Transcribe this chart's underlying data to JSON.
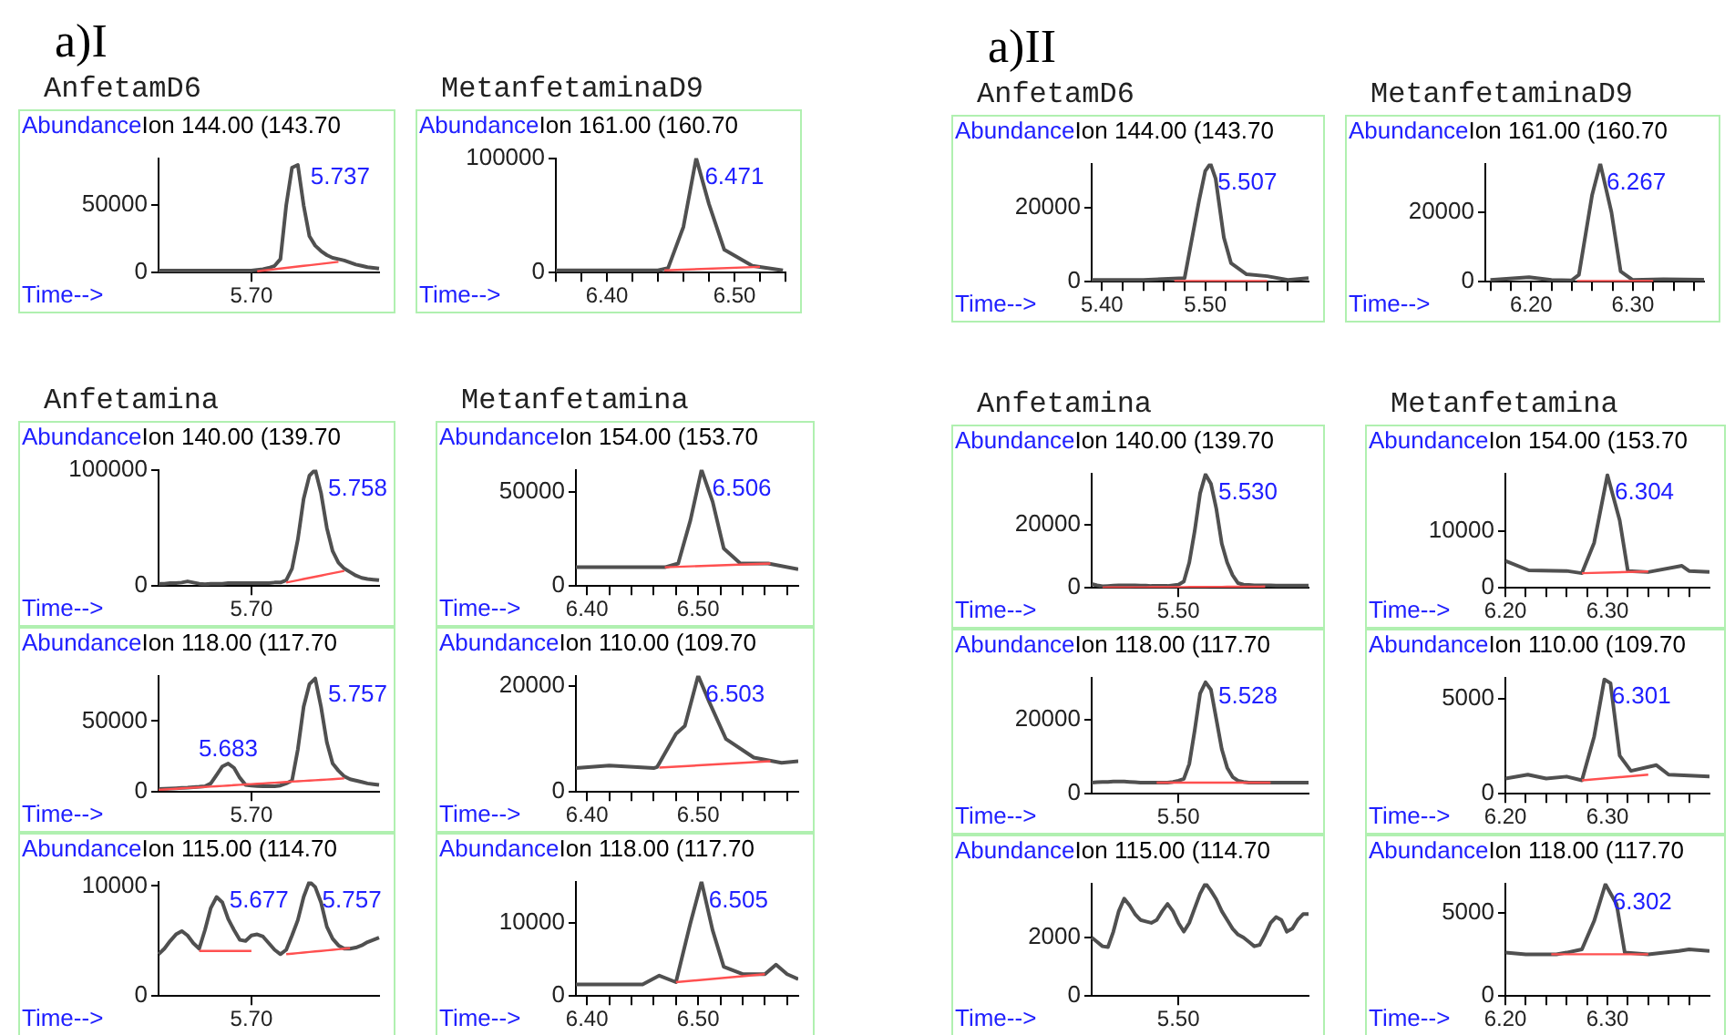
{
  "chart_data": [
    {
      "type": "line",
      "annotations": [
        "a)I",
        "5.737"
      ],
      "title": "AnfetamD6",
      "ylabel": "Abundance",
      "subtitle": "Ion 144.00 (143.70",
      "xlabel": "Time-->",
      "categories": [
        null,
        null,
        null,
        null,
        null,
        null,
        null,
        null,
        null,
        null,
        null,
        null,
        null,
        null,
        null,
        null,
        "5.70",
        null,
        null,
        null,
        null,
        null,
        null,
        null,
        null,
        null,
        null,
        null,
        null,
        null,
        null,
        null,
        null,
        null,
        null,
        null,
        null,
        null,
        null
      ],
      "ylim": [
        0,
        85000
      ],
      "yticks": [
        0,
        50000
      ],
      "legend": false,
      "series": [
        {
          "color": "#505050",
          "values": [
            1500,
            1500,
            1500,
            1500,
            1500,
            1500,
            1500,
            1500,
            1500,
            1500,
            1500,
            1500,
            1500,
            1500,
            1500,
            1500,
            1500,
            2000,
            2500,
            3500,
            5000,
            10000,
            50000,
            78000,
            80000,
            50000,
            27000,
            20000,
            16000,
            13000,
            11000,
            10000,
            9000,
            7500,
            6000,
            5000,
            4000,
            3500,
            3000
          ]
        },
        {
          "color": "#ff5050",
          "values": [
            null,
            null,
            null,
            null,
            null,
            null,
            null,
            null,
            null,
            null,
            null,
            null,
            null,
            null,
            null,
            null,
            null,
            1000,
            1500,
            2000,
            2500,
            3000,
            3500,
            4000,
            4500,
            5000,
            5500,
            6000,
            6500,
            7000,
            7500,
            8000,
            null,
            null,
            null,
            null,
            null,
            null,
            null
          ]
        }
      ]
    },
    {
      "type": "line",
      "annotations": [
        {
          "text": "6.471",
          "x": 6.471,
          "y": 100000
        }
      ],
      "title": "MetanfetaminaD9",
      "ylabel": "Abundance",
      "subtitle": "Ion 161.00 (160.70",
      "xlabel": "Time-->",
      "xlim": [
        6.36,
        6.54
      ],
      "ylim": [
        0,
        100000
      ],
      "yticks": [
        0,
        100000
      ],
      "xticks": [
        {
          "value": 6.36,
          "label": null
        },
        {
          "value": 6.38,
          "label": null
        },
        {
          "value": 6.4,
          "label": "6.40"
        },
        {
          "value": 6.42,
          "label": null
        },
        {
          "value": 6.44,
          "label": null
        },
        {
          "value": 6.46,
          "label": null
        },
        {
          "value": 6.48,
          "label": null
        },
        {
          "value": 6.5,
          "label": "6.50"
        },
        {
          "value": 6.52,
          "label": null
        },
        {
          "value": 6.54,
          "label": null
        }
      ],
      "legend": false,
      "series": [
        {
          "color": "#505050",
          "x": [
            6.36,
            6.4,
            6.44,
            6.448,
            6.46,
            6.47,
            6.48,
            6.492,
            6.514,
            6.538
          ],
          "values": [
            2000,
            2000,
            2000,
            4000,
            40000,
            100000,
            60000,
            20000,
            6000,
            2000
          ]
        },
        {
          "color": "#ff5050",
          "x": [
            6.445,
            6.52
          ],
          "values": [
            2000,
            5000
          ]
        }
      ]
    },
    {
      "type": "line",
      "annotations": [
        "5.758"
      ],
      "title": "Anfetamina",
      "ylabel": "Abundance",
      "subtitle": "Ion 140.00 (139.70",
      "xlabel": "Time-->",
      "categories": [
        null,
        null,
        null,
        null,
        null,
        null,
        null,
        null,
        null,
        null,
        null,
        null,
        null,
        null,
        null,
        null,
        "5.70",
        null,
        null,
        null,
        null,
        null,
        null,
        null,
        null,
        null,
        null,
        null,
        null,
        null,
        null,
        null,
        null,
        null,
        null,
        null,
        null,
        null,
        null
      ],
      "ylim": [
        0,
        100000
      ],
      "yticks": [
        0,
        100000
      ],
      "legend": false,
      "series": [
        {
          "color": "#505050",
          "values": [
            2000,
            2000,
            2500,
            2500,
            3000,
            4000,
            3000,
            2000,
            1500,
            2000,
            2000,
            2000,
            2500,
            2500,
            2500,
            2500,
            2500,
            2500,
            2500,
            2500,
            3000,
            3000,
            5000,
            15000,
            40000,
            75000,
            95000,
            100000,
            80000,
            50000,
            30000,
            20000,
            15000,
            12000,
            9000,
            7000,
            6000,
            5500,
            5000
          ]
        },
        {
          "color": "#ff5050",
          "values": [
            null,
            null,
            null,
            null,
            null,
            null,
            null,
            null,
            null,
            null,
            null,
            null,
            null,
            null,
            null,
            null,
            null,
            null,
            null,
            null,
            null,
            null,
            3000,
            4000,
            5000,
            6000,
            7000,
            8000,
            9000,
            10000,
            11000,
            12000,
            13000,
            null,
            null,
            null,
            null,
            null,
            null
          ]
        }
      ]
    },
    {
      "type": "line",
      "annotations": [
        {
          "text": "6.506",
          "x": 6.506,
          "y": 62000
        }
      ],
      "title": "Metanfetamina",
      "ylabel": "Abundance",
      "subtitle": "Ion 154.00 (153.70",
      "xlabel": "Time-->",
      "xlim": [
        6.39,
        6.59
      ],
      "ylim": [
        0,
        62000
      ],
      "yticks": [
        0,
        50000
      ],
      "xticks": [
        {
          "value": 6.4,
          "label": "6.40"
        },
        {
          "value": 6.42,
          "label": null
        },
        {
          "value": 6.44,
          "label": null
        },
        {
          "value": 6.46,
          "label": null
        },
        {
          "value": 6.48,
          "label": null
        },
        {
          "value": 6.5,
          "label": "6.50"
        },
        {
          "value": 6.52,
          "label": null
        },
        {
          "value": 6.54,
          "label": null
        },
        {
          "value": 6.56,
          "label": null
        },
        {
          "value": 6.58,
          "label": null
        }
      ],
      "legend": false,
      "series": [
        {
          "color": "#505050",
          "x": [
            6.39,
            6.43,
            6.47,
            6.482,
            6.493,
            6.503,
            6.513,
            6.523,
            6.538,
            6.563,
            6.59
          ],
          "values": [
            10000,
            10000,
            10000,
            12000,
            35000,
            62000,
            45000,
            20000,
            12000,
            12000,
            9000
          ]
        },
        {
          "color": "#ff5050",
          "x": [
            6.47,
            6.565
          ],
          "values": [
            10000,
            12000
          ]
        }
      ]
    },
    {
      "type": "line",
      "annotations": [
        "5.683",
        "5.757"
      ],
      "ylabel": "Abundance",
      "subtitle": "Ion 118.00 (117.70",
      "xlabel": "Time-->",
      "categories": [
        null,
        null,
        null,
        null,
        null,
        null,
        null,
        null,
        null,
        null,
        null,
        null,
        null,
        null,
        null,
        null,
        "5.70",
        null,
        null,
        null,
        null,
        null,
        null,
        null,
        null,
        null,
        null,
        null,
        null,
        null,
        null,
        null,
        null,
        null,
        null,
        null,
        null,
        null,
        null
      ],
      "ylim": [
        0,
        82000
      ],
      "yticks": [
        0,
        50000
      ],
      "legend": false,
      "series": [
        {
          "color": "#505050",
          "values": [
            2000,
            2200,
            2400,
            2600,
            2800,
            3000,
            3300,
            3600,
            4000,
            6000,
            12000,
            18000,
            20000,
            17000,
            10000,
            5000,
            4500,
            4200,
            4000,
            4000,
            4000,
            4500,
            6000,
            8000,
            30000,
            60000,
            76000,
            80000,
            60000,
            35000,
            20000,
            15000,
            11000,
            9000,
            8000,
            7000,
            6000,
            5500,
            5000
          ]
        },
        {
          "color": "#ff5050",
          "values": [
            1500,
            1750,
            2000,
            2250,
            2500,
            2750,
            3000,
            3250,
            3500,
            3750,
            4000,
            4250,
            4500,
            4750,
            5000,
            5250,
            5500,
            5750,
            6000,
            6250,
            6500,
            6750,
            7000,
            7250,
            7500,
            7750,
            8000,
            8250,
            8500,
            8750,
            9000,
            9250,
            9500,
            null,
            null,
            null,
            null,
            null,
            null
          ]
        }
      ]
    },
    {
      "type": "line",
      "annotations": [
        {
          "text": "6.503",
          "x": 6.5,
          "y": 22000
        }
      ],
      "ylabel": "Abundance",
      "subtitle": "Ion 110.00 (109.70",
      "xlabel": "Time-->",
      "xlim": [
        6.39,
        6.59
      ],
      "ylim": [
        0,
        22000
      ],
      "yticks": [
        0,
        20000
      ],
      "xticks": [
        {
          "value": 6.4,
          "label": "6.40"
        },
        {
          "value": 6.42,
          "label": null
        },
        {
          "value": 6.44,
          "label": null
        },
        {
          "value": 6.46,
          "label": null
        },
        {
          "value": 6.48,
          "label": null
        },
        {
          "value": 6.5,
          "label": "6.50"
        },
        {
          "value": 6.52,
          "label": null
        },
        {
          "value": 6.54,
          "label": null
        },
        {
          "value": 6.56,
          "label": null
        },
        {
          "value": 6.58,
          "label": null
        }
      ],
      "legend": false,
      "series": [
        {
          "color": "#505050",
          "x": [
            6.39,
            6.42,
            6.46,
            6.463,
            6.48,
            6.488,
            6.5,
            6.51,
            6.525,
            6.55,
            6.575,
            6.59
          ],
          "values": [
            4500,
            5000,
            4500,
            4700,
            11000,
            12500,
            22000,
            17000,
            10000,
            6500,
            5500,
            5800
          ]
        },
        {
          "color": "#ff5050",
          "x": [
            6.465,
            6.565
          ],
          "values": [
            4600,
            5800
          ]
        }
      ]
    },
    {
      "type": "line",
      "annotations": [
        "5.677",
        "5.757"
      ],
      "ylabel": "Abundance",
      "subtitle": "Ion 115.00 (114.70",
      "xlabel": "Time-->",
      "categories": [
        null,
        null,
        null,
        null,
        null,
        null,
        null,
        null,
        null,
        null,
        null,
        null,
        null,
        null,
        null,
        null,
        "5.70",
        null,
        null,
        null,
        null,
        null,
        null,
        null,
        null,
        null,
        null,
        null,
        null,
        null,
        null,
        null,
        null,
        null,
        null,
        null,
        null,
        null,
        null
      ],
      "ylim": [
        0,
        10400
      ],
      "yticks": [
        0,
        10000
      ],
      "legend": false,
      "series": [
        {
          "color": "#505050",
          "values": [
            3800,
            4300,
            5000,
            5600,
            5900,
            5500,
            4800,
            4300,
            6000,
            8000,
            9000,
            8500,
            7000,
            6000,
            5100,
            5000,
            5500,
            5600,
            5400,
            4800,
            4200,
            3800,
            4200,
            5500,
            6900,
            9000,
            10400,
            9900,
            8500,
            6300,
            5200,
            4600,
            4300,
            4300,
            4400,
            4600,
            4900,
            5100,
            5300
          ]
        },
        {
          "color": "#ff5050",
          "values": [
            null,
            null,
            null,
            null,
            null,
            null,
            null,
            4100,
            4100,
            4100,
            4100,
            4100,
            4100,
            4100,
            4100,
            4100,
            4100,
            null,
            null,
            null,
            null,
            null,
            null,
            null,
            null,
            null,
            null,
            null,
            null,
            null,
            null,
            null,
            null,
            null,
            null,
            null,
            null,
            null,
            null
          ]
        },
        {
          "color": "#ff5050",
          "values": [
            null,
            null,
            null,
            null,
            null,
            null,
            null,
            null,
            null,
            null,
            null,
            null,
            null,
            null,
            null,
            null,
            null,
            null,
            null,
            null,
            null,
            null,
            3800,
            3850,
            3900,
            3950,
            4000,
            4050,
            4100,
            4150,
            4200,
            4250,
            4300,
            4350,
            null,
            null,
            null,
            null,
            null
          ]
        }
      ]
    },
    {
      "type": "line",
      "annotations": [
        {
          "text": "6.505",
          "x": 6.503,
          "y": 15700
        }
      ],
      "ylabel": "Abundance",
      "subtitle": "Ion 118.00 (117.70",
      "xlabel": "Time-->",
      "xlim": [
        6.39,
        6.59
      ],
      "ylim": [
        0,
        15700
      ],
      "yticks": [
        0,
        10000
      ],
      "xticks": [
        {
          "value": 6.4,
          "label": "6.40"
        },
        {
          "value": 6.42,
          "label": null
        },
        {
          "value": 6.44,
          "label": null
        },
        {
          "value": 6.46,
          "label": null
        },
        {
          "value": 6.48,
          "label": null
        },
        {
          "value": 6.5,
          "label": "6.50"
        },
        {
          "value": 6.52,
          "label": null
        },
        {
          "value": 6.54,
          "label": null
        },
        {
          "value": 6.56,
          "label": null
        },
        {
          "value": 6.58,
          "label": null
        }
      ],
      "legend": false,
      "series": [
        {
          "color": "#505050",
          "x": [
            6.39,
            6.45,
            6.465,
            6.48,
            6.493,
            6.503,
            6.513,
            6.523,
            6.54,
            6.56,
            6.57,
            6.58,
            6.59
          ],
          "values": [
            1600,
            1600,
            2800,
            1900,
            10000,
            15700,
            9000,
            4000,
            3000,
            3000,
            4300,
            3000,
            2300
          ]
        },
        {
          "color": "#ff5050",
          "x": [
            6.48,
            6.56
          ],
          "values": [
            1900,
            3000
          ]
        }
      ]
    },
    {
      "type": "line",
      "annotations": [
        "a)II",
        {
          "text": "5.507",
          "x": 5.505,
          "y": 32000
        }
      ],
      "title": "AnfetamD6",
      "ylabel": "Abundance",
      "subtitle": "Ion 144.00 (143.70",
      "xlabel": "Time-->",
      "xlim": [
        5.39,
        5.6
      ],
      "ylim": [
        0,
        32000
      ],
      "yticks": [
        0,
        20000
      ],
      "xticks": [
        {
          "value": 5.4,
          "label": "5.40"
        },
        {
          "value": 5.42,
          "label": null
        },
        {
          "value": 5.44,
          "label": null
        },
        {
          "value": 5.46,
          "label": null
        },
        {
          "value": 5.48,
          "label": null
        },
        {
          "value": 5.5,
          "label": "5.50"
        },
        {
          "value": 5.52,
          "label": null
        },
        {
          "value": 5.54,
          "label": null
        },
        {
          "value": 5.56,
          "label": null
        },
        {
          "value": 5.58,
          "label": null
        }
      ],
      "legend": false,
      "series": [
        {
          "color": "#505050",
          "x": [
            5.39,
            5.44,
            5.48,
            5.494,
            5.5,
            5.505,
            5.51,
            5.518,
            5.525,
            5.54,
            5.56,
            5.58,
            5.6
          ],
          "values": [
            500,
            500,
            1000,
            22000,
            30000,
            32000,
            28000,
            12000,
            5000,
            2000,
            1500,
            500,
            1000
          ]
        },
        {
          "color": "#ff5050",
          "x": [
            5.47,
            5.56
          ],
          "values": [
            200,
            200
          ]
        }
      ]
    },
    {
      "type": "line",
      "annotations": [
        {
          "text": "6.267",
          "x": 6.267,
          "y": 34000
        }
      ],
      "title": "MetanfetaminaD9",
      "ylabel": "Abundance",
      "subtitle": "Ion 161.00 (160.70",
      "xlabel": "Time-->",
      "xlim": [
        6.155,
        6.37
      ],
      "ylim": [
        0,
        34000
      ],
      "yticks": [
        0,
        20000
      ],
      "xticks": [
        {
          "value": 6.16,
          "label": null
        },
        {
          "value": 6.18,
          "label": null
        },
        {
          "value": 6.2,
          "label": "6.20"
        },
        {
          "value": 6.22,
          "label": null
        },
        {
          "value": 6.24,
          "label": null
        },
        {
          "value": 6.26,
          "label": null
        },
        {
          "value": 6.28,
          "label": null
        },
        {
          "value": 6.3,
          "label": "6.30"
        },
        {
          "value": 6.32,
          "label": null
        },
        {
          "value": 6.34,
          "label": null
        },
        {
          "value": 6.36,
          "label": null
        }
      ],
      "legend": false,
      "series": [
        {
          "color": "#505050",
          "x": [
            6.16,
            6.198,
            6.22,
            6.24,
            6.247,
            6.26,
            6.268,
            6.279,
            6.288,
            6.3,
            6.33,
            6.37
          ],
          "values": [
            500,
            1300,
            500,
            400,
            2000,
            25000,
            34000,
            20000,
            3000,
            500,
            700,
            600
          ]
        },
        {
          "color": "#ff5050",
          "x": [
            6.245,
            6.32
          ],
          "values": [
            200,
            200
          ]
        }
      ]
    },
    {
      "type": "line",
      "annotations": [
        "5.530"
      ],
      "title": "Anfetamina",
      "ylabel": "Abundance",
      "subtitle": "Ion 140.00 (139.70",
      "xlabel": "Time-->",
      "categories": [
        null,
        null,
        null,
        null,
        null,
        null,
        null,
        null,
        null,
        null,
        null,
        null,
        null,
        null,
        null,
        null,
        "5.50",
        null,
        null,
        null,
        null,
        null,
        null,
        null,
        null,
        null,
        null,
        null,
        null,
        null,
        null,
        null,
        null,
        null,
        null,
        null,
        null,
        null,
        null,
        null,
        null
      ],
      "ylim": [
        0,
        36300
      ],
      "yticks": [
        0,
        20000
      ],
      "legend": false,
      "series": [
        {
          "color": "#505050",
          "values": [
            1200,
            800,
            500,
            600,
            700,
            800,
            800,
            800,
            800,
            700,
            700,
            600,
            600,
            600,
            600,
            800,
            1000,
            2000,
            8000,
            18000,
            30000,
            36000,
            33000,
            25000,
            14000,
            8000,
            4000,
            1500,
            1000,
            900,
            800,
            800,
            800,
            800,
            700,
            700,
            700,
            700,
            700,
            700,
            700
          ]
        },
        {
          "color": "#ff5050",
          "values": [
            null,
            null,
            100,
            110,
            120,
            130,
            140,
            150,
            160,
            170,
            180,
            190,
            200,
            210,
            220,
            230,
            240,
            250,
            260,
            270,
            280,
            290,
            300,
            310,
            320,
            330,
            340,
            350,
            360,
            370,
            380,
            390,
            400,
            null,
            null,
            null,
            null,
            null,
            null,
            null,
            null
          ]
        }
      ]
    },
    {
      "type": "line",
      "annotations": [
        {
          "text": "6.304",
          "x": 6.3,
          "y": 20000
        }
      ],
      "title": "Metanfetamina",
      "ylabel": "Abundance",
      "subtitle": "Ion 154.00 (153.70",
      "xlabel": "Time-->",
      "xlim": [
        6.2,
        6.4
      ],
      "ylim": [
        0,
        20300
      ],
      "yticks": [
        0,
        10000
      ],
      "xticks": [
        {
          "value": 6.2,
          "label": "6.20"
        },
        {
          "value": 6.22,
          "label": null
        },
        {
          "value": 6.24,
          "label": null
        },
        {
          "value": 6.26,
          "label": null
        },
        {
          "value": 6.28,
          "label": null
        },
        {
          "value": 6.3,
          "label": "6.30"
        },
        {
          "value": 6.32,
          "label": null
        },
        {
          "value": 6.34,
          "label": null
        },
        {
          "value": 6.36,
          "label": null
        },
        {
          "value": 6.38,
          "label": null
        }
      ],
      "legend": false,
      "series": [
        {
          "color": "#505050",
          "x": [
            6.2,
            6.223,
            6.26,
            6.275,
            6.287,
            6.3,
            6.312,
            6.32,
            6.34,
            6.373,
            6.38,
            6.4
          ],
          "values": [
            4800,
            3100,
            3000,
            2600,
            8000,
            20000,
            12000,
            3000,
            2800,
            3900,
            3000,
            2800
          ]
        },
        {
          "color": "#ff5050",
          "x": [
            6.275,
            6.34
          ],
          "values": [
            2600,
            2900
          ]
        }
      ]
    },
    {
      "type": "line",
      "annotations": [
        "5.528"
      ],
      "ylabel": "Abundance",
      "subtitle": "Ion 118.00 (117.70",
      "xlabel": "Time-->",
      "categories": [
        null,
        null,
        null,
        null,
        null,
        null,
        null,
        null,
        null,
        null,
        null,
        null,
        null,
        null,
        null,
        null,
        "5.50",
        null,
        null,
        null,
        null,
        null,
        null,
        null,
        null,
        null,
        null,
        null,
        null,
        null,
        null,
        null,
        null,
        null,
        null,
        null,
        null,
        null,
        null,
        null,
        null
      ],
      "ylim": [
        0,
        31300
      ],
      "yticks": [
        0,
        20000
      ],
      "legend": false,
      "series": [
        {
          "color": "#505050",
          "values": [
            3000,
            3100,
            3200,
            3200,
            3300,
            3300,
            3300,
            3200,
            3100,
            3000,
            3000,
            3000,
            3000,
            3000,
            3000,
            3200,
            3500,
            4000,
            8000,
            17000,
            27000,
            30000,
            28000,
            20000,
            12000,
            7000,
            4500,
            3500,
            3200,
            3000,
            3000,
            3000,
            3000,
            3000,
            3000,
            3000,
            3000,
            3000,
            3000,
            3000,
            3000
          ]
        },
        {
          "color": "#ff5050",
          "values": [
            null,
            null,
            null,
            null,
            null,
            null,
            null,
            null,
            null,
            null,
            null,
            null,
            3000,
            3000,
            3000,
            3000,
            3000,
            3000,
            3000,
            3000,
            3000,
            3000,
            3000,
            3000,
            3000,
            3000,
            3000,
            3000,
            3000,
            3000,
            3000,
            3000,
            3000,
            3000,
            null,
            null,
            null,
            null,
            null,
            null,
            null
          ]
        }
      ]
    },
    {
      "type": "line",
      "annotations": [
        {
          "text": "6.301",
          "x": 6.297,
          "y": 6000
        }
      ],
      "ylabel": "Abundance",
      "subtitle": "Ion 110.00 (109.70",
      "xlabel": "Time-->",
      "xlim": [
        6.2,
        6.4
      ],
      "ylim": [
        0,
        6100
      ],
      "yticks": [
        0,
        5000
      ],
      "xticks": [
        {
          "value": 6.2,
          "label": "6.20"
        },
        {
          "value": 6.22,
          "label": null
        },
        {
          "value": 6.24,
          "label": null
        },
        {
          "value": 6.26,
          "label": null
        },
        {
          "value": 6.28,
          "label": null
        },
        {
          "value": 6.3,
          "label": "6.30"
        },
        {
          "value": 6.32,
          "label": null
        },
        {
          "value": 6.34,
          "label": null
        },
        {
          "value": 6.36,
          "label": null
        },
        {
          "value": 6.38,
          "label": null
        }
      ],
      "legend": false,
      "series": [
        {
          "color": "#505050",
          "x": [
            6.2,
            6.222,
            6.24,
            6.26,
            6.275,
            6.287,
            6.297,
            6.303,
            6.312,
            6.323,
            6.348,
            6.36,
            6.4
          ],
          "values": [
            800,
            1000,
            800,
            900,
            700,
            3000,
            6000,
            5800,
            2000,
            1200,
            1500,
            1000,
            900
          ]
        },
        {
          "color": "#ff5050",
          "x": [
            6.275,
            6.34
          ],
          "values": [
            700,
            1000
          ]
        }
      ]
    },
    {
      "type": "line",
      "ylabel": "Abundance",
      "subtitle": "Ion 115.00 (114.70",
      "xlabel": "Time-->",
      "categories": [
        null,
        null,
        null,
        null,
        null,
        null,
        null,
        null,
        null,
        null,
        null,
        null,
        null,
        null,
        null,
        null,
        "5.50",
        null,
        null,
        null,
        null,
        null,
        null,
        null,
        null,
        null,
        null,
        null,
        null,
        null,
        null,
        null,
        null,
        null,
        null,
        null,
        null,
        null,
        null,
        null,
        null
      ],
      "ylim": [
        0,
        3850
      ],
      "yticks": [
        0,
        2000
      ],
      "legend": false,
      "series": [
        {
          "color": "#505050",
          "values": [
            2000,
            1850,
            1700,
            1670,
            2200,
            2900,
            3330,
            3100,
            2800,
            2600,
            2550,
            2500,
            2600,
            2900,
            3150,
            2900,
            2500,
            2200,
            2500,
            3000,
            3500,
            3850,
            3600,
            3300,
            2900,
            2600,
            2300,
            2100,
            2000,
            1850,
            1700,
            1750,
            2100,
            2500,
            2700,
            2600,
            2200,
            2300,
            2600,
            2800,
            2800
          ]
        }
      ]
    },
    {
      "type": "line",
      "annotations": [
        {
          "text": "6.302",
          "x": 6.298,
          "y": 6700
        }
      ],
      "ylabel": "Abundance",
      "subtitle": "Ion 118.00 (117.70",
      "xlabel": "Time-->",
      "xlim": [
        6.2,
        6.4
      ],
      "ylim": [
        0,
        6750
      ],
      "yticks": [
        0,
        5000
      ],
      "xticks": [
        {
          "value": 6.2,
          "label": "6.20"
        },
        {
          "value": 6.22,
          "label": null
        },
        {
          "value": 6.24,
          "label": null
        },
        {
          "value": 6.26,
          "label": null
        },
        {
          "value": 6.28,
          "label": null
        },
        {
          "value": 6.3,
          "label": "6.30"
        },
        {
          "value": 6.32,
          "label": null
        },
        {
          "value": 6.34,
          "label": null
        },
        {
          "value": 6.36,
          "label": null
        },
        {
          "value": 6.38,
          "label": null
        }
      ],
      "legend": false,
      "series": [
        {
          "color": "#505050",
          "x": [
            6.2,
            6.22,
            6.25,
            6.26,
            6.275,
            6.287,
            6.298,
            6.309,
            6.317,
            6.34,
            6.37,
            6.38,
            6.4
          ],
          "values": [
            2600,
            2500,
            2500,
            2600,
            2800,
            4500,
            6700,
            5500,
            2600,
            2500,
            2700,
            2800,
            2700
          ]
        },
        {
          "color": "#ff5050",
          "x": [
            6.245,
            6.34
          ],
          "values": [
            2500,
            2500
          ]
        }
      ]
    }
  ]
}
